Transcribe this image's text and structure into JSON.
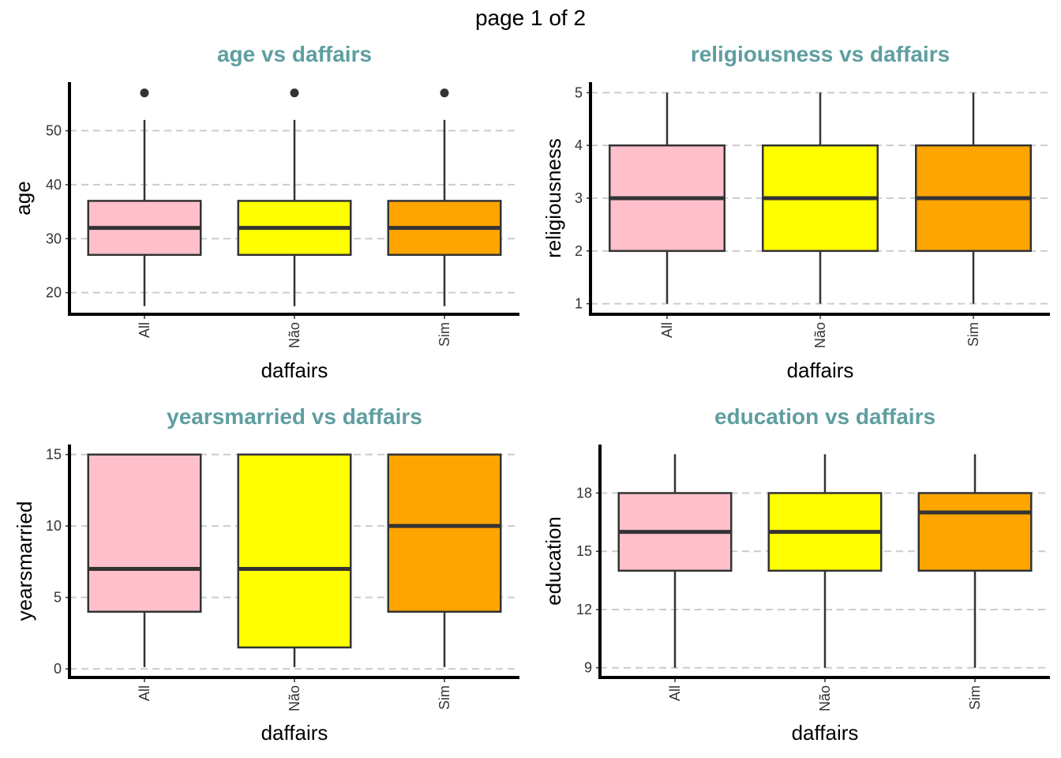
{
  "page_title": "page 1 of 2",
  "colors": {
    "title": "#5f9ea0",
    "All": "#ffc0cb",
    "Não": "#ffff00",
    "Sim": "#ffa500",
    "stroke": "#333333",
    "grid": "#cccccc"
  },
  "chart_data": [
    {
      "type": "box",
      "title": "age vs daffairs",
      "xlabel": "daffairs",
      "ylabel": "age",
      "categories": [
        "All",
        "Não",
        "Sim"
      ],
      "yticks": [
        20,
        30,
        40,
        50
      ],
      "ylim": [
        16.0,
        59.0
      ],
      "grid": true,
      "boxes": [
        {
          "category": "All",
          "lower": 17.5,
          "q1": 27,
          "median": 32,
          "q3": 37,
          "upper": 52,
          "outliers": [
            57
          ]
        },
        {
          "category": "Não",
          "lower": 17.5,
          "q1": 27,
          "median": 32,
          "q3": 37,
          "upper": 52,
          "outliers": [
            57
          ]
        },
        {
          "category": "Sim",
          "lower": 17.5,
          "q1": 27,
          "median": 32,
          "q3": 37,
          "upper": 52,
          "outliers": [
            57
          ]
        }
      ]
    },
    {
      "type": "box",
      "title": "religiousness vs daffairs",
      "xlabel": "daffairs",
      "ylabel": "religiousness",
      "categories": [
        "All",
        "Não",
        "Sim"
      ],
      "yticks": [
        1,
        2,
        3,
        4,
        5
      ],
      "ylim": [
        0.8,
        5.2
      ],
      "grid": true,
      "boxes": [
        {
          "category": "All",
          "lower": 1,
          "q1": 2,
          "median": 3,
          "q3": 4,
          "upper": 5,
          "outliers": []
        },
        {
          "category": "Não",
          "lower": 1,
          "q1": 2,
          "median": 3,
          "q3": 4,
          "upper": 5,
          "outliers": []
        },
        {
          "category": "Sim",
          "lower": 1,
          "q1": 2,
          "median": 3,
          "q3": 4,
          "upper": 5,
          "outliers": []
        }
      ]
    },
    {
      "type": "box",
      "title": "yearsmarried vs daffairs",
      "xlabel": "daffairs",
      "ylabel": "yearsmarried",
      "categories": [
        "All",
        "Não",
        "Sim"
      ],
      "yticks": [
        0,
        5,
        10,
        15
      ],
      "ylim": [
        -0.6,
        15.7
      ],
      "grid": true,
      "boxes": [
        {
          "category": "All",
          "lower": 0.125,
          "q1": 4,
          "median": 7,
          "q3": 15,
          "upper": 15,
          "outliers": []
        },
        {
          "category": "Não",
          "lower": 0.125,
          "q1": 1.5,
          "median": 7,
          "q3": 15,
          "upper": 15,
          "outliers": []
        },
        {
          "category": "Sim",
          "lower": 0.125,
          "q1": 4,
          "median": 10,
          "q3": 15,
          "upper": 15,
          "outliers": []
        }
      ]
    },
    {
      "type": "box",
      "title": "education vs daffairs",
      "xlabel": "daffairs",
      "ylabel": "education",
      "categories": [
        "All",
        "Não",
        "Sim"
      ],
      "yticks": [
        9,
        12,
        15,
        18
      ],
      "ylim": [
        8.5,
        20.5
      ],
      "grid": true,
      "boxes": [
        {
          "category": "All",
          "lower": 9,
          "q1": 14,
          "median": 16,
          "q3": 18,
          "upper": 20,
          "outliers": []
        },
        {
          "category": "Não",
          "lower": 9,
          "q1": 14,
          "median": 16,
          "q3": 18,
          "upper": 20,
          "outliers": []
        },
        {
          "category": "Sim",
          "lower": 9,
          "q1": 14,
          "median": 17,
          "q3": 18,
          "upper": 20,
          "outliers": []
        }
      ]
    }
  ]
}
